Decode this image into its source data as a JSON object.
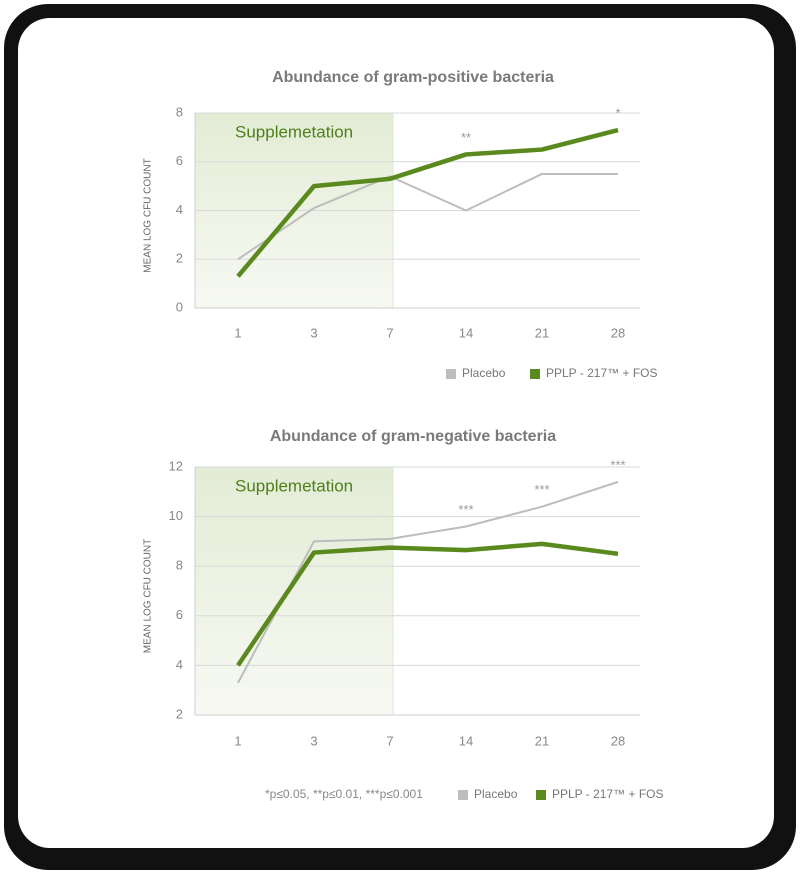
{
  "chart_data": [
    {
      "type": "line",
      "title": "Abundance of gram-positive bacteria",
      "y_label": "MEAN LOG CFU COUNT",
      "categories": [
        "1",
        "3",
        "7",
        "14",
        "21",
        "28"
      ],
      "series": [
        {
          "name": "Placebo",
          "color": "#bdbdbd",
          "values": [
            2.0,
            4.1,
            5.4,
            4.0,
            5.5,
            5.5
          ]
        },
        {
          "name": "PPLP - 217™ + FOS",
          "color": "#5a8a1e",
          "values": [
            1.3,
            5.0,
            5.3,
            6.3,
            6.5,
            7.3
          ]
        }
      ],
      "significance": [
        null,
        null,
        null,
        "**",
        null,
        "*"
      ],
      "highlight": {
        "label": "Supplemetation",
        "end": "7"
      },
      "ylim": [
        0,
        8
      ],
      "yticks": [
        0,
        2,
        4,
        6,
        8
      ],
      "grid": true
    },
    {
      "type": "line",
      "title": "Abundance of gram-negative bacteria",
      "y_label": "MEAN LOG CFU COUNT",
      "categories": [
        "1",
        "3",
        "7",
        "14",
        "21",
        "28"
      ],
      "series": [
        {
          "name": "Placebo",
          "color": "#bdbdbd",
          "values": [
            3.3,
            9.0,
            9.1,
            9.6,
            10.4,
            11.4
          ]
        },
        {
          "name": "PPLP - 217™ + FOS",
          "color": "#5a8a1e",
          "values": [
            4.0,
            8.55,
            8.75,
            8.65,
            8.9,
            8.5
          ]
        }
      ],
      "significance": [
        null,
        null,
        null,
        "***",
        "***",
        "***"
      ],
      "highlight": {
        "label": "Supplemetation",
        "end": "7"
      },
      "note": "*p≤0.05, **p≤0.01, ***p≤0.001",
      "ylim": [
        2,
        12
      ],
      "yticks": [
        2,
        4,
        6,
        8,
        10,
        12
      ],
      "grid": true
    }
  ]
}
